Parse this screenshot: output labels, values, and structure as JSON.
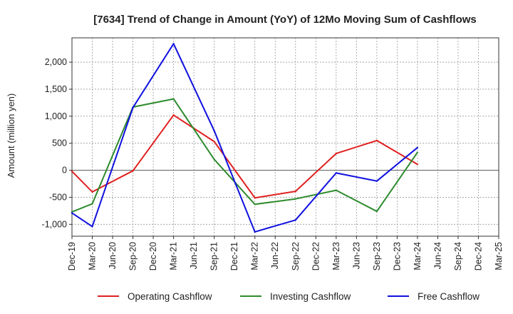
{
  "chart_data": {
    "type": "line",
    "title": "[7634]  Trend of Change in Amount (YoY) of 12Mo Moving Sum of Cashflows",
    "xlabel": "",
    "ylabel": "Amount (million yen)",
    "ylim": [
      -1220,
      2450
    ],
    "yticks": [
      -1000,
      -500,
      0,
      500,
      1000,
      1500,
      2000
    ],
    "ytick_labels": [
      "-1,000",
      "-500",
      "0",
      "500",
      "1,000",
      "1,500",
      "2,000"
    ],
    "categories": [
      "Dec-19",
      "Mar-20",
      "Jun-20",
      "Sep-20",
      "Dec-20",
      "Mar-21",
      "Jun-21",
      "Sep-21",
      "Dec-21",
      "Mar-22",
      "Jun-22",
      "Sep-22",
      "Dec-22",
      "Mar-23",
      "Jun-23",
      "Sep-23",
      "Dec-23",
      "Mar-24",
      "Jun-24",
      "Sep-24",
      "Dec-24",
      "Mar-25"
    ],
    "grid": true,
    "legend_position": "bottom",
    "series": [
      {
        "name": "Operating Cashflow",
        "color": "#e02020",
        "values": [
          -20,
          -400,
          null,
          -10,
          null,
          1020,
          null,
          530,
          null,
          -510,
          null,
          -390,
          null,
          310,
          null,
          550,
          null,
          110,
          null,
          null,
          null,
          null
        ]
      },
      {
        "name": "Investing Cashflow",
        "color": "#2e8b2e",
        "values": [
          -770,
          -620,
          null,
          1170,
          null,
          1320,
          null,
          200,
          null,
          -630,
          null,
          -530,
          null,
          -370,
          null,
          -760,
          null,
          330,
          null,
          null,
          null,
          null
        ]
      },
      {
        "name": "Free Cashflow",
        "color": "#1010e0",
        "values": [
          -790,
          -1040,
          null,
          1160,
          null,
          2340,
          null,
          730,
          null,
          -1140,
          null,
          -920,
          null,
          -50,
          null,
          -200,
          null,
          420,
          null,
          null,
          null,
          null
        ]
      }
    ]
  }
}
